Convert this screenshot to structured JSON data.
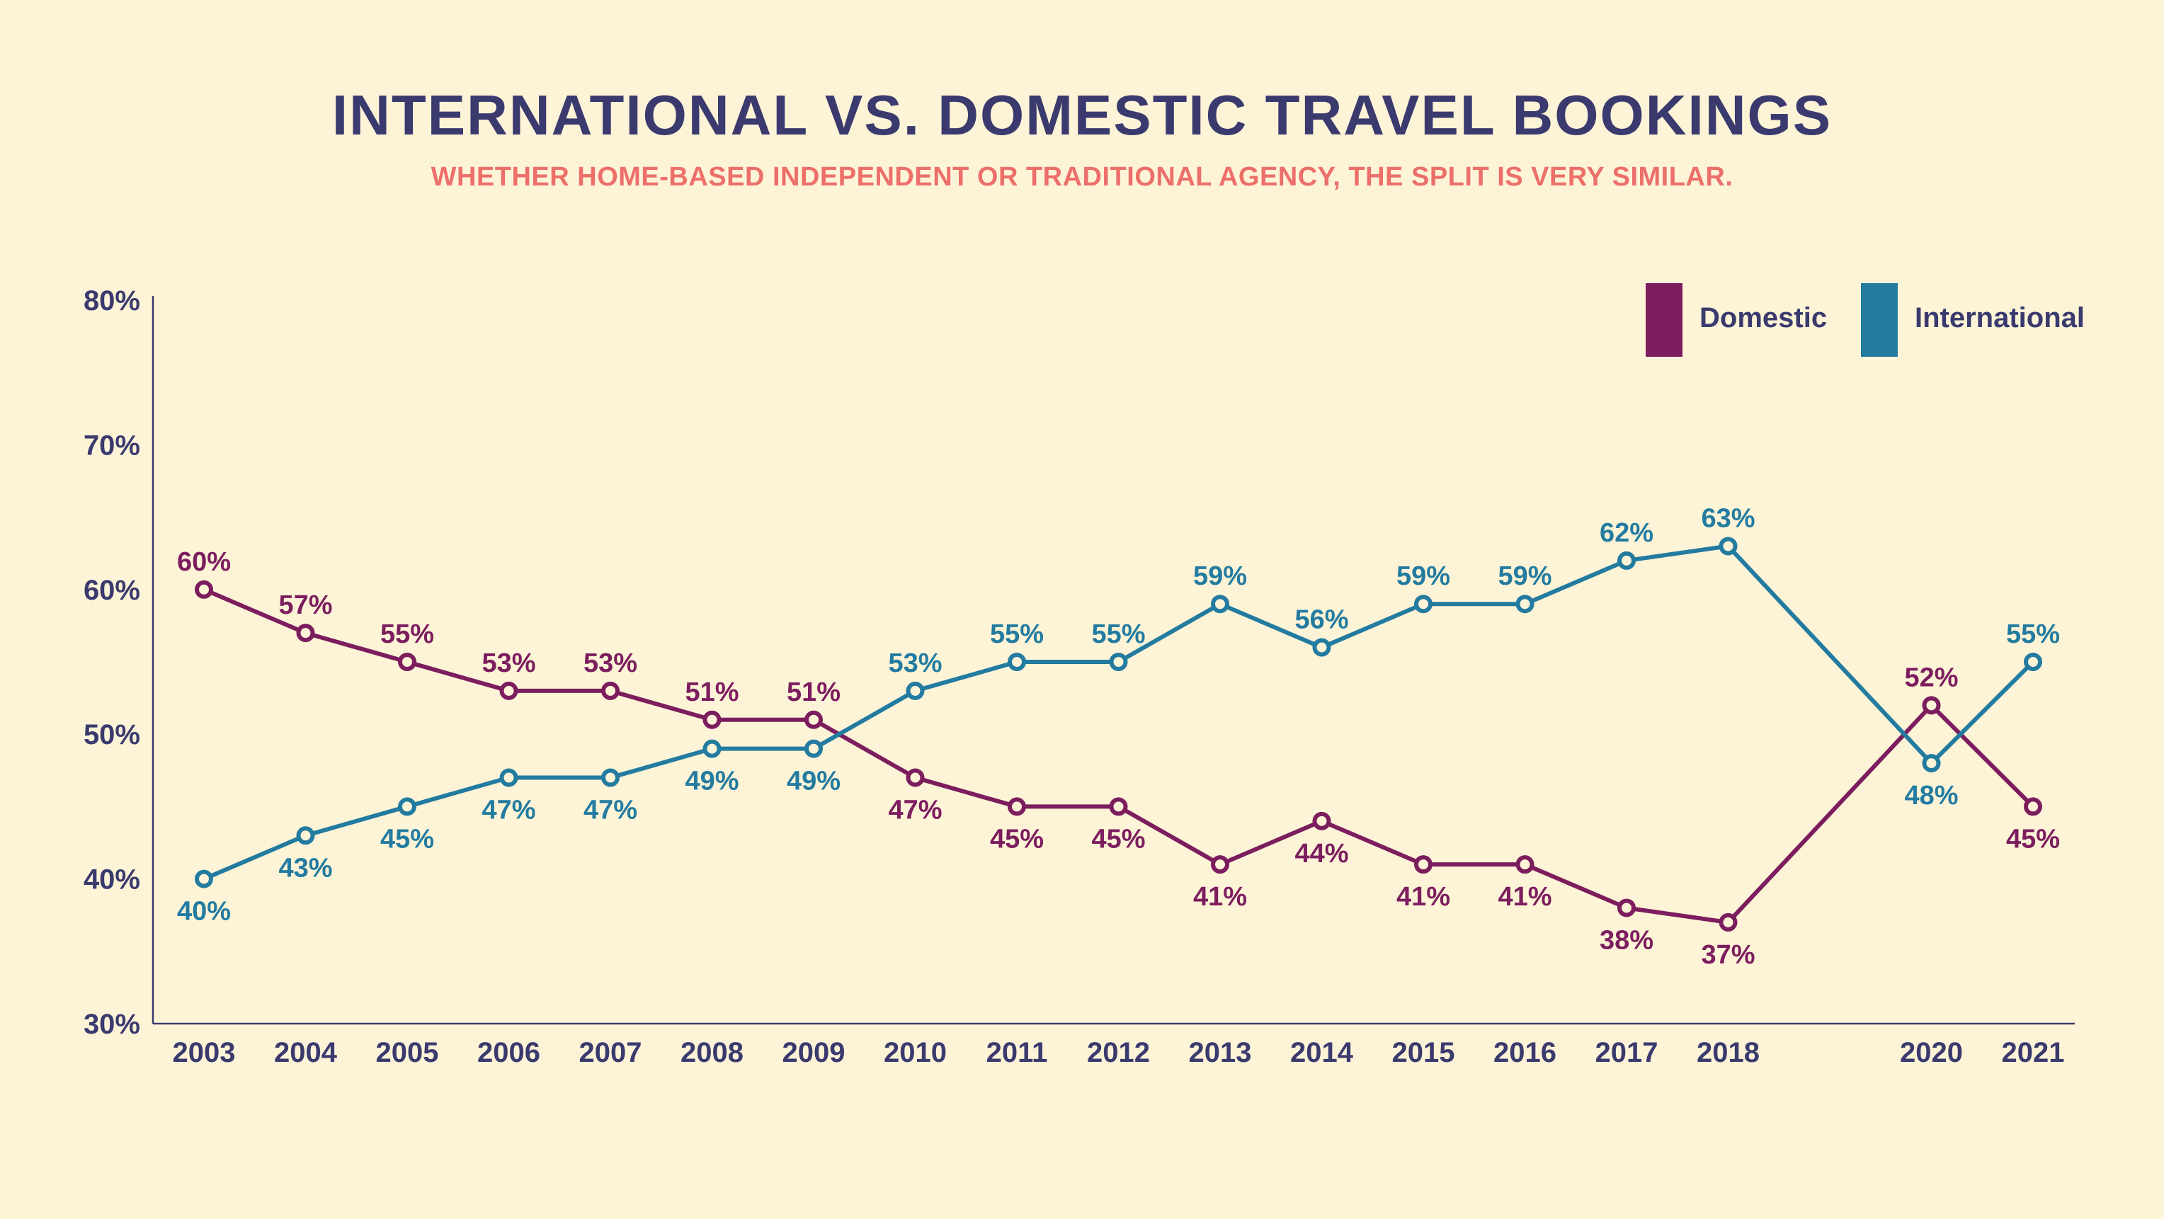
{
  "colors": {
    "background": "#fdf4d8",
    "title": "#3b3a6e",
    "subtitle": "#ec6f6a",
    "axis": "#3b3a6e",
    "domestic": "#7c1d5e",
    "international": "#237ba0"
  },
  "chart_data": {
    "type": "line",
    "title": "INTERNATIONAL VS. DOMESTIC TRAVEL BOOKINGS",
    "subtitle": "WHETHER HOME-BASED INDEPENDENT OR TRADITIONAL AGENCY, THE SPLIT IS VERY SIMILAR.",
    "xlabel": "",
    "ylabel": "",
    "ylim": [
      30,
      80
    ],
    "y_ticks": [
      "30%",
      "40%",
      "50%",
      "60%",
      "70%",
      "80%"
    ],
    "y_tick_values": [
      30,
      40,
      50,
      60,
      70,
      80
    ],
    "x": [
      2003,
      2004,
      2005,
      2006,
      2007,
      2008,
      2009,
      2010,
      2011,
      2012,
      2013,
      2014,
      2015,
      2016,
      2017,
      2018,
      2020,
      2021
    ],
    "x_labels": [
      "2003",
      "2004",
      "2005",
      "2006",
      "2007",
      "2008",
      "2009",
      "2010",
      "2011",
      "2012",
      "2013",
      "2014",
      "2015",
      "2016",
      "2017",
      "2018",
      "2020",
      "2021"
    ],
    "grid": false,
    "legend_position": "top-right",
    "series": [
      {
        "name": "Domestic",
        "values": [
          60,
          57,
          55,
          53,
          53,
          51,
          51,
          47,
          45,
          45,
          41,
          44,
          41,
          41,
          38,
          37,
          52,
          45
        ],
        "labels": [
          "60%",
          "57%",
          "55%",
          "53%",
          "53%",
          "51%",
          "51%",
          "47%",
          "45%",
          "45%",
          "41%",
          "44%",
          "41%",
          "41%",
          "38%",
          "37%",
          "52%",
          "45%"
        ]
      },
      {
        "name": "International",
        "values": [
          40,
          43,
          45,
          47,
          47,
          49,
          49,
          53,
          55,
          55,
          59,
          56,
          59,
          59,
          62,
          63,
          48,
          55
        ],
        "labels": [
          "40%",
          "43%",
          "45%",
          "47%",
          "47%",
          "49%",
          "49%",
          "53%",
          "55%",
          "55%",
          "59%",
          "56%",
          "59%",
          "59%",
          "62%",
          "63%",
          "48%",
          "55%"
        ]
      }
    ]
  }
}
